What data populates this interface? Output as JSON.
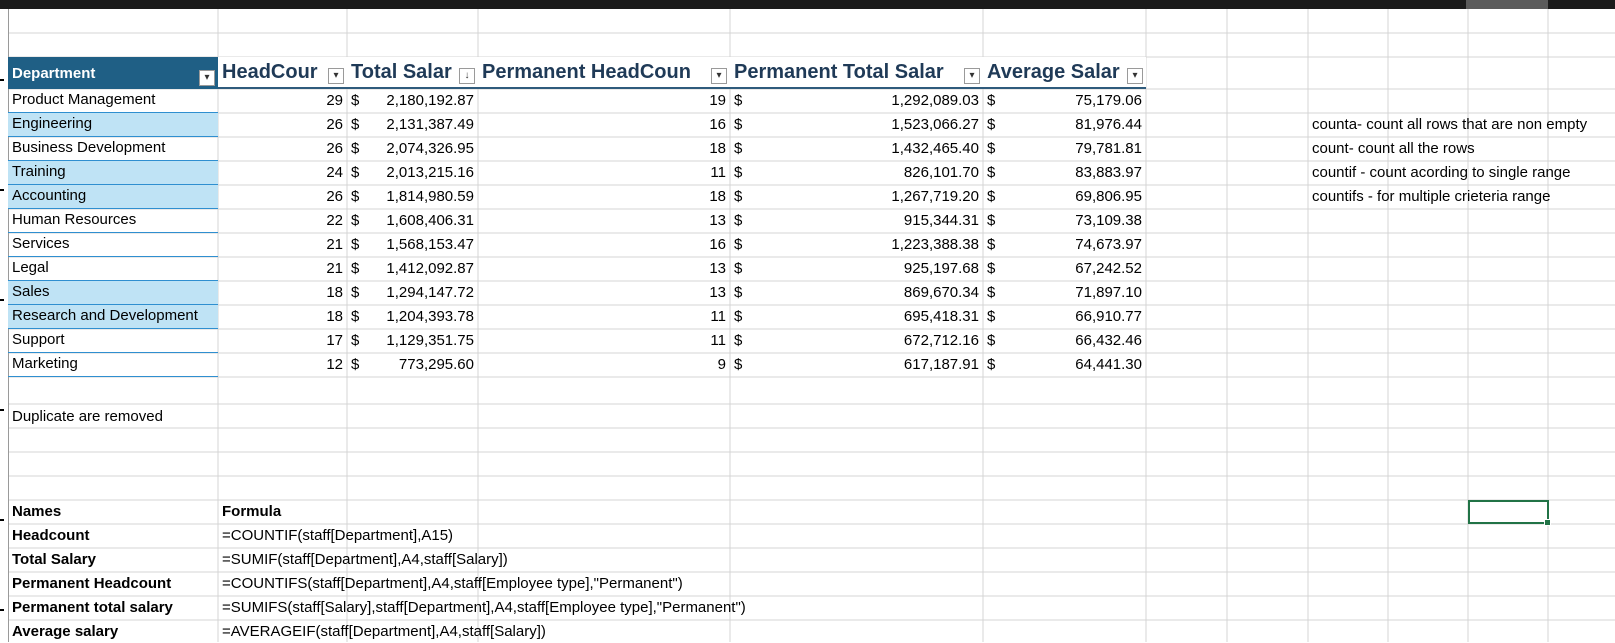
{
  "table": {
    "headers": {
      "department": "Department",
      "headcount": "HeadCour",
      "total_salary": "Total Salar",
      "permanent_headcount": "Permanent HeadCoun",
      "permanent_total_salary": "Permanent Total Salar",
      "average_salary": "Average Salar"
    },
    "currency_symbol": "$",
    "rows": [
      {
        "department": "Product Management",
        "headcount": "29",
        "total_salary": "2,180,192.87",
        "permanent_headcount": "19",
        "permanent_total_salary": "1,292,089.03",
        "average_salary": "75,179.06"
      },
      {
        "department": "Engineering",
        "headcount": "26",
        "total_salary": "2,131,387.49",
        "permanent_headcount": "16",
        "permanent_total_salary": "1,523,066.27",
        "average_salary": "81,976.44"
      },
      {
        "department": "Business Development",
        "headcount": "26",
        "total_salary": "2,074,326.95",
        "permanent_headcount": "18",
        "permanent_total_salary": "1,432,465.40",
        "average_salary": "79,781.81"
      },
      {
        "department": "Training",
        "headcount": "24",
        "total_salary": "2,013,215.16",
        "permanent_headcount": "11",
        "permanent_total_salary": "826,101.70",
        "average_salary": "83,883.97"
      },
      {
        "department": "Accounting",
        "headcount": "26",
        "total_salary": "1,814,980.59",
        "permanent_headcount": "18",
        "permanent_total_salary": "1,267,719.20",
        "average_salary": "69,806.95"
      },
      {
        "department": "Human Resources",
        "headcount": "22",
        "total_salary": "1,608,406.31",
        "permanent_headcount": "13",
        "permanent_total_salary": "915,344.31",
        "average_salary": "73,109.38"
      },
      {
        "department": "Services",
        "headcount": "21",
        "total_salary": "1,568,153.47",
        "permanent_headcount": "16",
        "permanent_total_salary": "1,223,388.38",
        "average_salary": "74,673.97"
      },
      {
        "department": "Legal",
        "headcount": "21",
        "total_salary": "1,412,092.87",
        "permanent_headcount": "13",
        "permanent_total_salary": "925,197.68",
        "average_salary": "67,242.52"
      },
      {
        "department": "Sales",
        "headcount": "18",
        "total_salary": "1,294,147.72",
        "permanent_headcount": "13",
        "permanent_total_salary": "869,670.34",
        "average_salary": "71,897.10"
      },
      {
        "department": "Research and Development",
        "headcount": "18",
        "total_salary": "1,204,393.78",
        "permanent_headcount": "11",
        "permanent_total_salary": "695,418.31",
        "average_salary": "66,910.77"
      },
      {
        "department": "Support",
        "headcount": "17",
        "total_salary": "1,129,351.75",
        "permanent_headcount": "11",
        "permanent_total_salary": "672,712.16",
        "average_salary": "66,432.46"
      },
      {
        "department": "Marketing",
        "headcount": "12",
        "total_salary": "773,295.60",
        "permanent_headcount": "9",
        "permanent_total_salary": "617,187.91",
        "average_salary": "64,441.30"
      }
    ]
  },
  "notes": {
    "duplicates": "Duplicate are removed",
    "counta": "counta- count all rows that are non empty",
    "count": "count- count all the rows",
    "countif": "countif - count acording to single range",
    "countifs": "countifs - for multiple crieteria range"
  },
  "formulas": {
    "header_names": "Names",
    "header_formula": "Formula",
    "rows": [
      {
        "name": "Headcount",
        "formula": "=COUNTIF(staff[Department],A15)"
      },
      {
        "name": "Total Salary",
        "formula": "=SUMIF(staff[Department],A4,staff[Salary])"
      },
      {
        "name": "Permanent Headcount",
        "formula": "=COUNTIFS(staff[Department],A4,staff[Employee type],\"Permanent\")"
      },
      {
        "name": "Permanent total salary",
        "formula": "=SUMIFS(staff[Salary],staff[Department],A4,staff[Employee type],\"Permanent\")"
      },
      {
        "name": "Average salary",
        "formula": "=AVERAGEIF(staff[Department],A4,staff[Salary])"
      }
    ]
  },
  "colors": {
    "table_header_fill": "#1f5f85",
    "banded_row_fill": "#bfe3f5",
    "selection_border": "#217346",
    "gridline": "#d4d4d4"
  }
}
